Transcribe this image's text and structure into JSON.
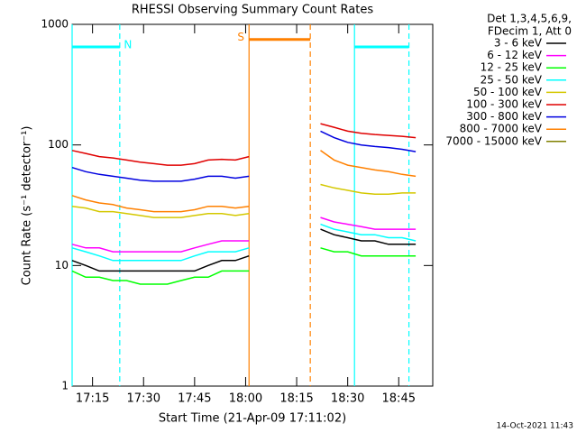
{
  "chart_data": {
    "type": "line",
    "title": "RHESSI Observing Summary Count Rates",
    "x_label": "Start Time (21-Apr-09 17:11:02)",
    "y_label": "Count Rate (s⁻¹ detector⁻¹)",
    "legend_header": [
      "Det 1,3,4,5,6,9,",
      "FDecim 1, Att 0"
    ],
    "footer": "14-Oct-2021 11:43",
    "log_y": true,
    "legend": "right",
    "xlim": [
      "17:09",
      "18:55"
    ],
    "xticks": [
      "17:15",
      "17:30",
      "17:45",
      "18:00",
      "18:15",
      "18:30",
      "18:45"
    ],
    "ylim": [
      1,
      1000
    ],
    "yticks": [
      1,
      10,
      100,
      1000
    ],
    "night": {
      "label": "N",
      "color": "#00ffff",
      "level": 650,
      "intervals": [
        [
          "17:09",
          "17:23"
        ],
        [
          "18:32",
          "18:48"
        ]
      ]
    },
    "saa": {
      "label": "S",
      "color": "#ff8000",
      "level": 750,
      "intervals": [
        [
          "18:01",
          "18:19"
        ]
      ]
    },
    "x": [
      "17:09",
      "17:13",
      "17:17",
      "17:21",
      "17:25",
      "17:29",
      "17:33",
      "17:37",
      "17:41",
      "17:45",
      "17:49",
      "17:53",
      "17:57",
      "18:01",
      "18:10",
      "18:22",
      "18:26",
      "18:30",
      "18:34",
      "18:38",
      "18:42",
      "18:46",
      "18:50"
    ],
    "series": [
      {
        "name": "3 - 6 keV",
        "color": "#000000",
        "values": [
          11,
          10,
          9,
          9,
          9,
          9,
          9,
          9,
          9,
          9,
          10,
          11,
          11,
          12,
          null,
          20,
          18,
          17,
          16,
          16,
          15,
          15,
          15
        ]
      },
      {
        "name": "6 - 12 keV",
        "color": "#ff00ff",
        "values": [
          15,
          14,
          14,
          13,
          13,
          13,
          13,
          13,
          13,
          14,
          15,
          16,
          16,
          16,
          null,
          25,
          23,
          22,
          21,
          20,
          20,
          20,
          20
        ]
      },
      {
        "name": "12 - 25 keV",
        "color": "#00ff00",
        "values": [
          9,
          8,
          8,
          7.5,
          7.5,
          7,
          7,
          7,
          7.5,
          8,
          8,
          9,
          9,
          9,
          null,
          14,
          13,
          13,
          12,
          12,
          12,
          12,
          12
        ]
      },
      {
        "name": "25 - 50 keV",
        "color": "#00ffff",
        "values": [
          14,
          13,
          12,
          11,
          11,
          11,
          11,
          11,
          11,
          12,
          13,
          13,
          13,
          14,
          null,
          22,
          20,
          19,
          18,
          18,
          17,
          17,
          16
        ]
      },
      {
        "name": "50 - 100 keV",
        "color": "#d4c800",
        "values": [
          31,
          30,
          28,
          28,
          27,
          26,
          25,
          25,
          25,
          26,
          27,
          27,
          26,
          27,
          null,
          47,
          44,
          42,
          40,
          39,
          39,
          40,
          40
        ]
      },
      {
        "name": "100 - 300 keV",
        "color": "#e00000",
        "values": [
          90,
          85,
          80,
          78,
          75,
          72,
          70,
          68,
          68,
          70,
          75,
          76,
          75,
          80,
          null,
          150,
          140,
          130,
          125,
          122,
          120,
          118,
          115
        ]
      },
      {
        "name": "300 - 800 keV",
        "color": "#0000e0",
        "values": [
          65,
          60,
          57,
          55,
          53,
          51,
          50,
          50,
          50,
          52,
          55,
          55,
          53,
          55,
          null,
          130,
          115,
          105,
          100,
          97,
          95,
          92,
          88
        ]
      },
      {
        "name": "800 - 7000 keV",
        "color": "#ff8000",
        "values": [
          38,
          35,
          33,
          32,
          30,
          29,
          28,
          28,
          28,
          29,
          31,
          31,
          30,
          31,
          null,
          90,
          75,
          68,
          65,
          62,
          60,
          57,
          55
        ]
      },
      {
        "name": "7000 - 15000 keV",
        "color": "#808000",
        "values": [
          null,
          null,
          null,
          null,
          null,
          null,
          null,
          null,
          null,
          null,
          null,
          null,
          null,
          null,
          null,
          null,
          null,
          null,
          null,
          null,
          null,
          null,
          null
        ]
      }
    ]
  }
}
